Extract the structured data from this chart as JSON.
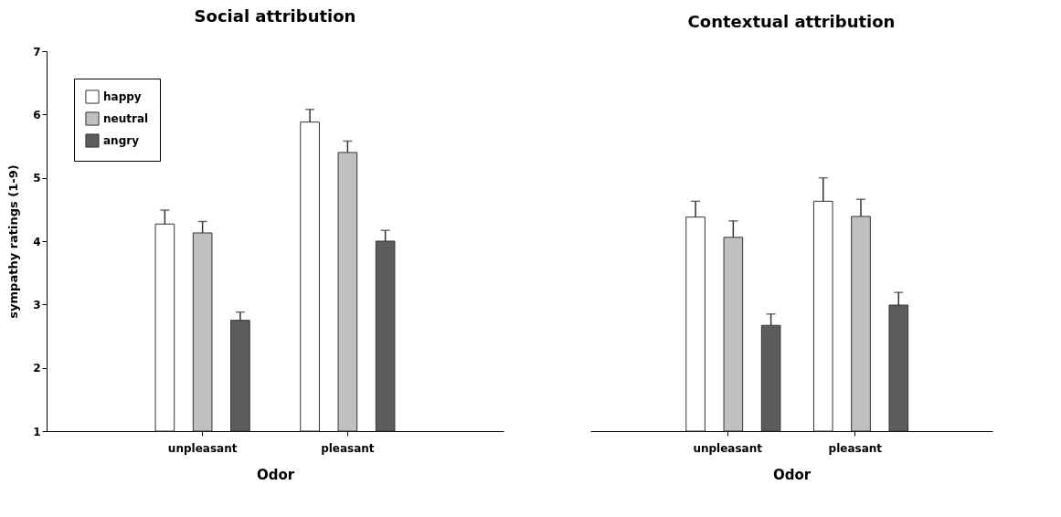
{
  "chart_data": [
    {
      "type": "bar",
      "title": "Social attribution",
      "xlabel": "Odor",
      "ylabel": "sympathy ratings (1-9)",
      "categories": [
        "unpleasant",
        "pleasant"
      ],
      "series": [
        {
          "name": "happy",
          "color": "#ffffff",
          "values": [
            4.27,
            5.88
          ],
          "errors": [
            0.22,
            0.2
          ]
        },
        {
          "name": "neutral",
          "color": "#c0c0c0",
          "values": [
            4.13,
            5.4
          ],
          "errors": [
            0.18,
            0.18
          ]
        },
        {
          "name": "angry",
          "color": "#5c5c5c",
          "values": [
            2.75,
            4.0
          ],
          "errors": [
            0.13,
            0.17
          ]
        }
      ],
      "ylim": [
        1,
        7
      ],
      "yticks": [
        1,
        2,
        3,
        4,
        5,
        6,
        7
      ],
      "legend": "top left"
    },
    {
      "type": "bar",
      "title": "Contextual attribution",
      "xlabel": "Odor",
      "categories": [
        "unpleasant",
        "pleasant"
      ],
      "series": [
        {
          "color": "#ffffff",
          "values": [
            4.38,
            4.63
          ],
          "errors": [
            0.25,
            0.37
          ]
        },
        {
          "color": "#c0c0c0",
          "values": [
            4.06,
            4.39
          ],
          "errors": [
            0.26,
            0.27
          ]
        },
        {
          "color": "#5c5c5c",
          "values": [
            2.67,
            2.99
          ],
          "errors": [
            0.18,
            0.2
          ]
        }
      ],
      "ylim": [
        1,
        7
      ],
      "yticks": [
        1,
        2,
        3,
        4,
        5,
        6,
        7
      ],
      "tick_labels": "x"
    }
  ]
}
